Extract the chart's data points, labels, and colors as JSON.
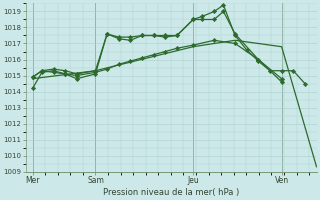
{
  "background_color": "#cde8e8",
  "grid_color": "#aacfcf",
  "line_color": "#2d6a2d",
  "marker_color": "#2d6a2d",
  "xlabel": "Pression niveau de la mer( hPa )",
  "ylim": [
    1009,
    1019.5
  ],
  "yticks": [
    1009,
    1010,
    1011,
    1012,
    1013,
    1014,
    1015,
    1016,
    1017,
    1018,
    1019
  ],
  "xlim": [
    0,
    12.5
  ],
  "day_labels": [
    "Mer",
    "Sam",
    "Jeu",
    "Ven"
  ],
  "day_positions": [
    0.3,
    3.0,
    7.2,
    11.0
  ],
  "vline_positions": [
    0.3,
    3.0,
    7.2,
    11.0
  ],
  "series": [
    {
      "x": [
        0.3,
        0.7,
        1.2,
        1.7,
        2.2,
        3.0,
        3.5,
        4.0,
        4.5,
        5.0,
        5.5,
        6.0,
        6.5,
        7.2,
        7.6,
        8.1,
        8.5,
        9.0,
        9.5,
        10.0,
        10.5,
        11.0,
        11.5,
        12.0
      ],
      "y": [
        1014.2,
        1015.2,
        1015.3,
        1015.1,
        1014.8,
        1015.1,
        1017.6,
        1017.3,
        1017.2,
        1017.5,
        1017.5,
        1017.4,
        1017.5,
        1018.5,
        1018.7,
        1019.0,
        1019.4,
        1017.5,
        1016.6,
        1015.9,
        1015.3,
        1015.3,
        1015.3,
        1014.5
      ],
      "marker": "D",
      "ms": 2.2,
      "lw": 0.9
    },
    {
      "x": [
        0.3,
        3.0,
        7.2,
        9.0,
        11.0,
        12.5
      ],
      "y": [
        1014.8,
        1015.3,
        1016.8,
        1017.2,
        1016.8,
        1009.3
      ],
      "marker": null,
      "ms": 0,
      "lw": 0.9
    },
    {
      "x": [
        0.3,
        0.7,
        1.2,
        1.7,
        2.2,
        3.0,
        3.5,
        4.0,
        4.5,
        5.0,
        5.5,
        6.0,
        6.5,
        7.2,
        8.1,
        9.0,
        10.0,
        11.0
      ],
      "y": [
        1014.9,
        1015.3,
        1015.2,
        1015.1,
        1015.0,
        1015.2,
        1015.4,
        1015.7,
        1015.9,
        1016.1,
        1016.3,
        1016.5,
        1016.7,
        1016.9,
        1017.2,
        1017.0,
        1016.0,
        1014.8
      ],
      "marker": "D",
      "ms": 2.2,
      "lw": 0.9
    },
    {
      "x": [
        0.3,
        0.7,
        1.2,
        1.7,
        2.2,
        3.0,
        3.5,
        4.0,
        4.5,
        5.0,
        5.5,
        6.0,
        6.5,
        7.2,
        7.6,
        8.1,
        8.5,
        9.0,
        10.0,
        11.0
      ],
      "y": [
        1014.9,
        1015.3,
        1015.4,
        1015.3,
        1015.1,
        1015.3,
        1017.6,
        1017.4,
        1017.4,
        1017.5,
        1017.5,
        1017.5,
        1017.5,
        1018.5,
        1018.5,
        1018.5,
        1019.0,
        1017.6,
        1016.0,
        1014.6
      ],
      "marker": "D",
      "ms": 2.2,
      "lw": 0.9
    }
  ]
}
